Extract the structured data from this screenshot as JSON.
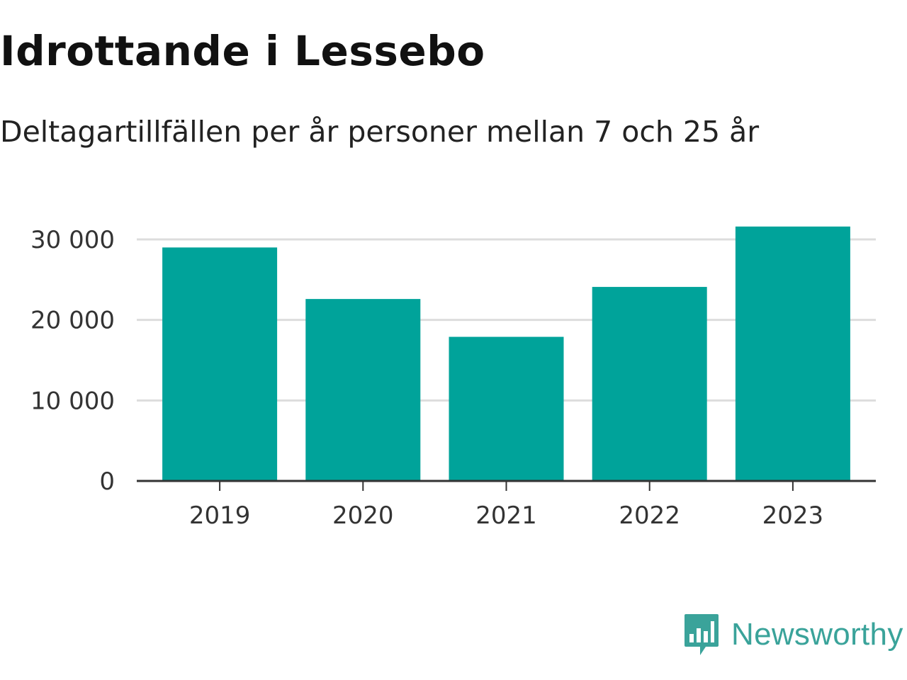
{
  "chart_data": {
    "type": "bar",
    "title": "Idrottande i Lessebo",
    "subtitle": "Deltagartillfällen per år personer mellan 7 och 25 år",
    "categories": [
      "2019",
      "2020",
      "2021",
      "2022",
      "2023"
    ],
    "values": [
      29000,
      22600,
      17900,
      24100,
      31600
    ],
    "ylim": [
      0,
      30000
    ],
    "yticks": [
      0,
      10000,
      20000,
      30000
    ],
    "ytick_labels": [
      "0",
      "10 000",
      "20 000",
      "30 000"
    ],
    "xlabel": "",
    "ylabel": "",
    "grid": true,
    "bar_color": "#00a39a"
  },
  "branding": {
    "name": "Newsworthy",
    "logo_icon": "bar-chart-speech-bubble-icon",
    "color": "#3aa39a"
  }
}
